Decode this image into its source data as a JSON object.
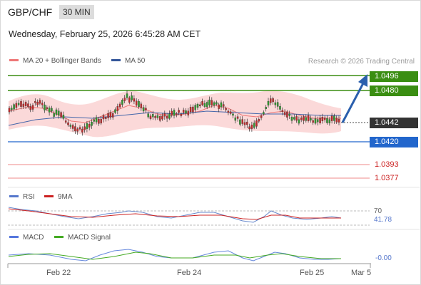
{
  "header": {
    "pair": "GBP/CHF",
    "timeframe": "30 MIN",
    "datetime": "Wednesday, February 25, 2026 6:45:28 AM CET"
  },
  "legend": {
    "ma20": "MA 20 + Bollinger Bands",
    "ma50": "MA 50",
    "credit": "Research © 2026 Trading Central"
  },
  "price_levels": {
    "resistance_2": "1.0496",
    "resistance_1": "1.0480",
    "last": "1.0442",
    "pivot": "1.0420",
    "support_1": "1.0393",
    "support_2": "1.0377"
  },
  "rsi": {
    "label": "RSI",
    "ma_label": "9MA",
    "level": "70",
    "value": "41.78"
  },
  "macd": {
    "label": "MACD",
    "signal_label": "MACD Signal",
    "value": "-0.00"
  },
  "xaxis": {
    "labels": [
      "Feb 22",
      "Feb 24",
      "Feb 25",
      "Mar 5"
    ]
  },
  "colors": {
    "resistance": "#3a8e12",
    "pivot": "#2266cc",
    "support": "#ee8888",
    "ma20": "#ee7777",
    "ma50": "#335599",
    "band": "#fbd9d9",
    "rsi": "#5577cc",
    "rsi_ma": "#cc2222",
    "macd": "#5577dd",
    "macd_signal": "#44aa22"
  },
  "icons": [
    "forecast-arrow-icon"
  ]
}
